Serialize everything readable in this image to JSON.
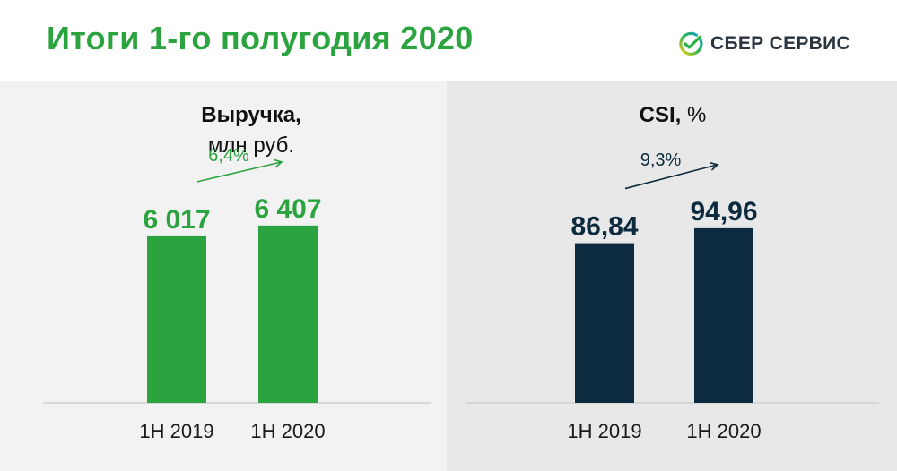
{
  "header": {
    "title": "Итоги 1-го полугодия 2020",
    "logo_text": "СБЕР СЕРВИС",
    "logo_icon": "sber-checkmark-icon",
    "colors": {
      "green": "#2ba33f",
      "navy": "#0d2b3e"
    }
  },
  "chart_data": [
    {
      "type": "bar",
      "title_bold": "Выручка,",
      "title_rest": "млн руб.",
      "categories": [
        "1H 2019",
        "1H 2020"
      ],
      "values": [
        6017,
        6407
      ],
      "value_labels": [
        "6 017",
        "6 407"
      ],
      "growth_label": "6,4%",
      "color": "#2ba33f",
      "ylim": [
        0,
        9700
      ]
    },
    {
      "type": "bar",
      "title_bold": "CSI,",
      "title_rest": " %",
      "categories": [
        "1H 2019",
        "1H 2020"
      ],
      "values": [
        86.84,
        94.96
      ],
      "value_labels": [
        "86,84",
        "94,96"
      ],
      "growth_label": "9,3%",
      "color": "#0d2b3e",
      "ylim": [
        0,
        146
      ]
    }
  ]
}
